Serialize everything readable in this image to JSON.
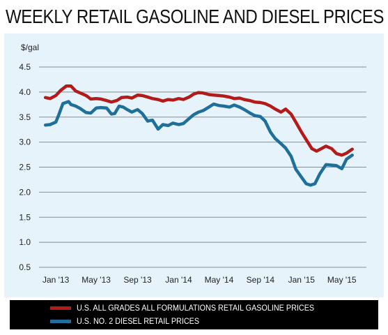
{
  "title": "WEEKLY RETAIL GASOLINE AND DIESEL PRICES",
  "chart_data": {
    "type": "line",
    "title": "WEEKLY RETAIL GASOLINE AND DIESEL PRICES",
    "ylabel": "$/gal",
    "xlabel": "",
    "ylim": [
      0.5,
      4.5
    ],
    "yticks": [
      "4.5",
      "4.0",
      "3.5",
      "3.0",
      "2.5",
      "2.0",
      "1.5",
      "1.0",
      "0.5"
    ],
    "xlim": [
      "2012-11-12",
      "2015-07-13"
    ],
    "xticks": [
      {
        "label": "Jan '13",
        "date": "2013-01-01"
      },
      {
        "label": "May '13",
        "date": "2013-05-01"
      },
      {
        "label": "Sep '13",
        "date": "2013-09-01"
      },
      {
        "label": "Jan '14",
        "date": "2014-01-01"
      },
      {
        "label": "May '14",
        "date": "2014-05-01"
      },
      {
        "label": "Sep '14",
        "date": "2014-09-01"
      },
      {
        "label": "Jan '15",
        "date": "2015-01-01"
      },
      {
        "label": "May '15",
        "date": "2015-05-01"
      }
    ],
    "grid": true,
    "legend_position": "bottom",
    "series": [
      {
        "name": "U.S. ALL GRADES ALL FORMULATIONS RETAIL GASOLINE PRICES",
        "color": "#b31b1b",
        "points": [
          [
            "2012-12-01",
            3.89
          ],
          [
            "2012-12-15",
            3.87
          ],
          [
            "2013-01-01",
            3.93
          ],
          [
            "2013-01-15",
            4.03
          ],
          [
            "2013-02-01",
            4.12
          ],
          [
            "2013-02-15",
            4.12
          ],
          [
            "2013-03-01",
            4.02
          ],
          [
            "2013-03-15",
            3.98
          ],
          [
            "2013-04-01",
            3.93
          ],
          [
            "2013-04-15",
            3.86
          ],
          [
            "2013-05-01",
            3.87
          ],
          [
            "2013-05-15",
            3.86
          ],
          [
            "2013-06-01",
            3.83
          ],
          [
            "2013-06-15",
            3.8
          ],
          [
            "2013-07-01",
            3.83
          ],
          [
            "2013-07-15",
            3.89
          ],
          [
            "2013-08-01",
            3.9
          ],
          [
            "2013-08-15",
            3.88
          ],
          [
            "2013-09-01",
            3.94
          ],
          [
            "2013-09-15",
            3.93
          ],
          [
            "2013-10-01",
            3.9
          ],
          [
            "2013-10-15",
            3.87
          ],
          [
            "2013-11-01",
            3.85
          ],
          [
            "2013-11-15",
            3.82
          ],
          [
            "2013-12-01",
            3.85
          ],
          [
            "2013-12-15",
            3.84
          ],
          [
            "2014-01-01",
            3.87
          ],
          [
            "2014-01-15",
            3.85
          ],
          [
            "2014-02-01",
            3.9
          ],
          [
            "2014-02-15",
            3.96
          ],
          [
            "2014-03-01",
            3.99
          ],
          [
            "2014-03-15",
            3.98
          ],
          [
            "2014-04-01",
            3.95
          ],
          [
            "2014-04-15",
            3.94
          ],
          [
            "2014-05-01",
            3.93
          ],
          [
            "2014-05-15",
            3.92
          ],
          [
            "2014-06-01",
            3.9
          ],
          [
            "2014-06-15",
            3.87
          ],
          [
            "2014-07-01",
            3.88
          ],
          [
            "2014-07-15",
            3.85
          ],
          [
            "2014-08-01",
            3.83
          ],
          [
            "2014-08-15",
            3.8
          ],
          [
            "2014-09-01",
            3.79
          ],
          [
            "2014-09-15",
            3.77
          ],
          [
            "2014-10-01",
            3.72
          ],
          [
            "2014-10-15",
            3.66
          ],
          [
            "2014-11-01",
            3.6
          ],
          [
            "2014-11-15",
            3.66
          ],
          [
            "2014-12-01",
            3.56
          ],
          [
            "2014-12-15",
            3.4
          ],
          [
            "2015-01-01",
            3.2
          ],
          [
            "2015-01-15",
            3.05
          ],
          [
            "2015-02-01",
            2.87
          ],
          [
            "2015-02-15",
            2.82
          ],
          [
            "2015-03-01",
            2.87
          ],
          [
            "2015-03-15",
            2.92
          ],
          [
            "2015-04-01",
            2.87
          ],
          [
            "2015-04-15",
            2.77
          ],
          [
            "2015-05-01",
            2.74
          ],
          [
            "2015-05-15",
            2.78
          ],
          [
            "2015-06-01",
            2.86
          ]
        ]
      },
      {
        "name": "U.S.  NO. 2 DIESEL RETAIL PRICES",
        "color": "#1f6f9a",
        "points": [
          [
            "2012-12-01",
            3.34
          ],
          [
            "2012-12-15",
            3.35
          ],
          [
            "2013-01-01",
            3.4
          ],
          [
            "2013-01-10",
            3.55
          ],
          [
            "2013-01-22",
            3.77
          ],
          [
            "2013-02-08",
            3.81
          ],
          [
            "2013-02-15",
            3.75
          ],
          [
            "2013-03-01",
            3.72
          ],
          [
            "2013-03-15",
            3.67
          ],
          [
            "2013-04-01",
            3.59
          ],
          [
            "2013-04-15",
            3.58
          ],
          [
            "2013-05-01",
            3.68
          ],
          [
            "2013-05-15",
            3.69
          ],
          [
            "2013-06-01",
            3.68
          ],
          [
            "2013-06-15",
            3.56
          ],
          [
            "2013-06-25",
            3.57
          ],
          [
            "2013-07-08",
            3.72
          ],
          [
            "2013-07-20",
            3.7
          ],
          [
            "2013-08-01",
            3.65
          ],
          [
            "2013-08-15",
            3.6
          ],
          [
            "2013-09-01",
            3.65
          ],
          [
            "2013-09-15",
            3.57
          ],
          [
            "2013-10-01",
            3.42
          ],
          [
            "2013-10-15",
            3.44
          ],
          [
            "2013-11-01",
            3.26
          ],
          [
            "2013-11-15",
            3.35
          ],
          [
            "2013-12-01",
            3.33
          ],
          [
            "2013-12-15",
            3.38
          ],
          [
            "2014-01-01",
            3.35
          ],
          [
            "2014-01-15",
            3.37
          ],
          [
            "2014-02-01",
            3.47
          ],
          [
            "2014-02-15",
            3.55
          ],
          [
            "2014-03-01",
            3.6
          ],
          [
            "2014-03-15",
            3.63
          ],
          [
            "2014-04-01",
            3.7
          ],
          [
            "2014-04-15",
            3.76
          ],
          [
            "2014-05-01",
            3.73
          ],
          [
            "2014-05-15",
            3.72
          ],
          [
            "2014-06-01",
            3.7
          ],
          [
            "2014-06-15",
            3.74
          ],
          [
            "2014-07-01",
            3.7
          ],
          [
            "2014-07-15",
            3.65
          ],
          [
            "2014-08-01",
            3.58
          ],
          [
            "2014-08-15",
            3.53
          ],
          [
            "2014-09-01",
            3.51
          ],
          [
            "2014-09-15",
            3.42
          ],
          [
            "2014-10-01",
            3.2
          ],
          [
            "2014-10-15",
            3.07
          ],
          [
            "2014-11-01",
            2.97
          ],
          [
            "2014-11-15",
            2.88
          ],
          [
            "2014-12-01",
            2.72
          ],
          [
            "2014-12-15",
            2.46
          ],
          [
            "2015-01-01",
            2.3
          ],
          [
            "2015-01-15",
            2.17
          ],
          [
            "2015-01-28",
            2.14
          ],
          [
            "2015-02-10",
            2.17
          ],
          [
            "2015-02-25",
            2.37
          ],
          [
            "2015-03-15",
            2.55
          ],
          [
            "2015-04-01",
            2.54
          ],
          [
            "2015-04-15",
            2.53
          ],
          [
            "2015-05-01",
            2.47
          ],
          [
            "2015-05-15",
            2.66
          ],
          [
            "2015-06-01",
            2.74
          ]
        ]
      }
    ]
  },
  "colors": {
    "panel_background": "#e6f3fa",
    "gridline": "#8c8c8c",
    "legend_background": "#000000"
  }
}
